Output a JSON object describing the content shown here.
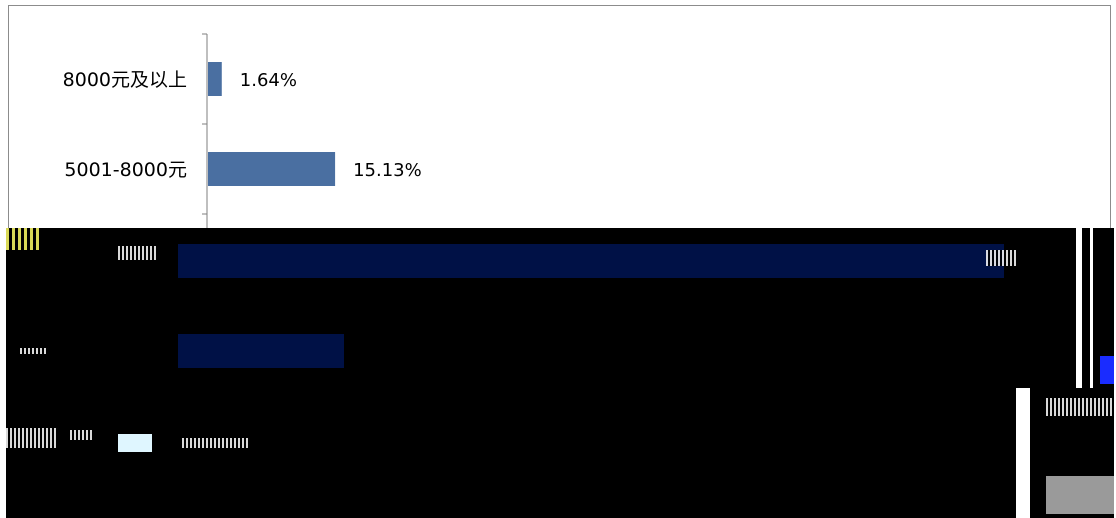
{
  "chart_data": {
    "type": "bar",
    "orientation": "horizontal",
    "categories": [
      "8000元及以上",
      "5001-8000元"
    ],
    "values": [
      1.64,
      15.13
    ],
    "value_format": "%",
    "data_labels": [
      "1.64%",
      "15.13%"
    ],
    "title": "",
    "xlabel": "",
    "ylabel": "",
    "xlim": [
      0,
      100
    ],
    "grid": false,
    "legend": "none",
    "bar_color": "#4a6fa1",
    "note": "lower portion of chart obscured by corrupted/black region"
  },
  "colors": {
    "bar": "#4a6fa1",
    "axis": "#7f7f7f",
    "frame": "#8c8c8c",
    "glitch_background": "#000000",
    "glitch_bar": "#001146"
  }
}
